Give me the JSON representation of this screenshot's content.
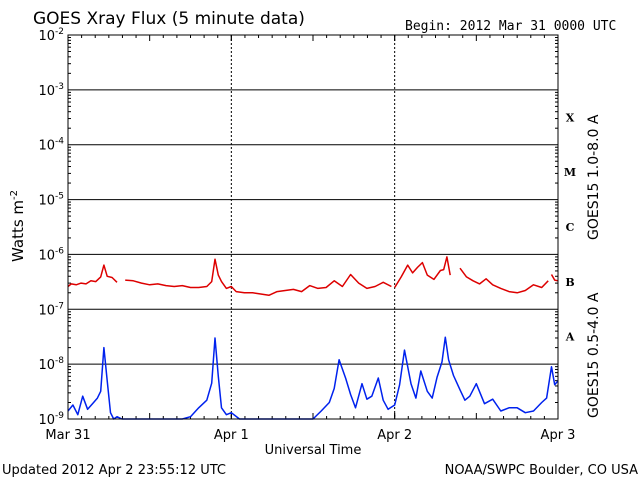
{
  "chart_data": {
    "type": "line",
    "title": "GOES Xray Flux (5 minute data)",
    "begin_text": "Begin:  2012 Mar 31 0000 UTC",
    "ylabel": "Watts m",
    "ylabel_sup": "-2",
    "xlabel": "Universal Time",
    "yscale": "log",
    "ylim": [
      1e-09,
      0.01
    ],
    "y_ticks": [
      {
        "base": "10",
        "exp": "-2"
      },
      {
        "base": "10",
        "exp": "-3"
      },
      {
        "base": "10",
        "exp": "-4"
      },
      {
        "base": "10",
        "exp": "-5"
      },
      {
        "base": "10",
        "exp": "-6"
      },
      {
        "base": "10",
        "exp": "-7"
      },
      {
        "base": "10",
        "exp": "-8"
      },
      {
        "base": "10",
        "exp": "-9"
      }
    ],
    "x_tick_labels": [
      "Mar 31",
      "Apr 1",
      "Apr 2",
      "Apr 3"
    ],
    "xlim_days": [
      0,
      3
    ],
    "flare_classes": [
      "X",
      "M",
      "C",
      "B",
      "A"
    ],
    "series": [
      {
        "name": "GOES15 1.0-8.0 A",
        "color": "#dd0000",
        "x": [
          0,
          0.02,
          0.05,
          0.08,
          0.11,
          0.14,
          0.17,
          0.2,
          0.22,
          0.24,
          0.27,
          0.3,
          null,
          0.35,
          0.4,
          0.45,
          0.5,
          0.55,
          0.6,
          0.65,
          0.7,
          0.75,
          0.8,
          0.85,
          0.88,
          0.9,
          0.92,
          0.94,
          0.97,
          1.0,
          1.03,
          1.08,
          1.13,
          1.18,
          1.23,
          1.28,
          1.33,
          1.38,
          1.43,
          1.48,
          1.53,
          1.58,
          1.63,
          1.68,
          1.73,
          1.78,
          1.83,
          1.88,
          1.93,
          1.98,
          null,
          2.0,
          2.04,
          2.08,
          2.11,
          2.14,
          2.17,
          2.2,
          2.24,
          2.28,
          2.3,
          2.32,
          2.34,
          null,
          2.4,
          2.44,
          2.48,
          2.52,
          2.56,
          2.6,
          2.65,
          2.7,
          2.75,
          2.8,
          2.85,
          2.9,
          2.94,
          null,
          2.96,
          2.98,
          3.0
        ],
        "y": [
          2.6e-07,
          2.9e-07,
          2.8e-07,
          3e-07,
          2.9e-07,
          3.3e-07,
          3.2e-07,
          3.9e-07,
          6.4e-07,
          4e-07,
          3.8e-07,
          3.1e-07,
          null,
          3.4e-07,
          3.3e-07,
          3e-07,
          2.8e-07,
          2.9e-07,
          2.7e-07,
          2.6e-07,
          2.7e-07,
          2.5e-07,
          2.5e-07,
          2.6e-07,
          3.2e-07,
          8.2e-07,
          4.2e-07,
          3.2e-07,
          2.4e-07,
          2.6e-07,
          2.1e-07,
          2e-07,
          2e-07,
          1.9e-07,
          1.8e-07,
          2.1e-07,
          2.2e-07,
          2.3e-07,
          2.1e-07,
          2.7e-07,
          2.4e-07,
          2.5e-07,
          3.3e-07,
          2.6e-07,
          4.3e-07,
          3e-07,
          2.4e-07,
          2.6e-07,
          3.1e-07,
          2.6e-07,
          null,
          2.5e-07,
          3.9e-07,
          6.4e-07,
          4.6e-07,
          5.8e-07,
          7.1e-07,
          4.2e-07,
          3.5e-07,
          5.1e-07,
          5.3e-07,
          9e-07,
          4.2e-07,
          null,
          5.6e-07,
          3.9e-07,
          3.3e-07,
          2.9e-07,
          3.6e-07,
          2.8e-07,
          2.4e-07,
          2.1e-07,
          2e-07,
          2.2e-07,
          2.8e-07,
          2.5e-07,
          3.3e-07,
          null,
          4.3e-07,
          3.4e-07,
          3.3e-07
        ]
      },
      {
        "name": "GOES15 0.5-4.0 A",
        "color": "#0022ee",
        "x": [
          0,
          0.03,
          0.06,
          0.09,
          0.12,
          0.15,
          0.18,
          0.2,
          0.22,
          0.24,
          0.26,
          0.28,
          0.3,
          0.33,
          0.36,
          0.4,
          0.45,
          0.5,
          0.55,
          0.6,
          0.65,
          0.7,
          0.75,
          0.8,
          0.85,
          0.88,
          0.9,
          0.92,
          0.94,
          0.97,
          1.0,
          1.05,
          1.1,
          1.15,
          1.2,
          1.25,
          1.3,
          1.35,
          1.4,
          1.45,
          1.5,
          1.55,
          1.6,
          1.63,
          1.66,
          1.7,
          1.73,
          1.76,
          1.8,
          1.83,
          1.86,
          1.9,
          1.93,
          1.96,
          2.0,
          2.03,
          2.06,
          2.1,
          2.13,
          2.16,
          2.2,
          2.23,
          2.26,
          2.29,
          2.31,
          2.33,
          2.36,
          2.4,
          2.43,
          2.46,
          2.5,
          2.55,
          2.6,
          2.65,
          2.7,
          2.75,
          2.8,
          2.85,
          2.9,
          2.93,
          2.96,
          2.98,
          3.0
        ],
        "y": [
          1.4e-09,
          1.8e-09,
          1.2e-09,
          2.6e-09,
          1.5e-09,
          1.9e-09,
          2.4e-09,
          3.2e-09,
          2e-08,
          5e-09,
          1.3e-09,
          1e-09,
          1.1e-09,
          1e-09,
          1e-09,
          1e-09,
          1e-09,
          1e-09,
          1e-09,
          1e-09,
          1e-09,
          1e-09,
          1.1e-09,
          1.6e-09,
          2.2e-09,
          4.5e-09,
          3e-08,
          6e-09,
          1.6e-09,
          1.2e-09,
          1.3e-09,
          1e-09,
          1e-09,
          1e-09,
          1e-09,
          1e-09,
          1e-09,
          1e-09,
          1e-09,
          1e-09,
          1e-09,
          1.4e-09,
          2e-09,
          3.6e-09,
          1.2e-08,
          5.5e-09,
          2.8e-09,
          1.6e-09,
          4.4e-09,
          2.3e-09,
          2.6e-09,
          5.6e-09,
          2.2e-09,
          1.5e-09,
          1.8e-09,
          4.2e-09,
          1.8e-08,
          4.4e-09,
          2.4e-09,
          7.5e-09,
          3.2e-09,
          2.4e-09,
          5.8e-09,
          1.1e-08,
          3.1e-08,
          1.2e-08,
          6.2e-09,
          3.4e-09,
          2.2e-09,
          2.6e-09,
          4.4e-09,
          1.9e-09,
          2.3e-09,
          1.4e-09,
          1.6e-09,
          1.6e-09,
          1.3e-09,
          1.4e-09,
          2e-09,
          2.4e-09,
          9e-09,
          4.2e-09,
          5e-09
        ]
      }
    ]
  },
  "footer": {
    "updated": "Updated 2012 Apr  2 23:55:12 UTC",
    "credit": "NOAA/SWPC Boulder, CO USA"
  }
}
